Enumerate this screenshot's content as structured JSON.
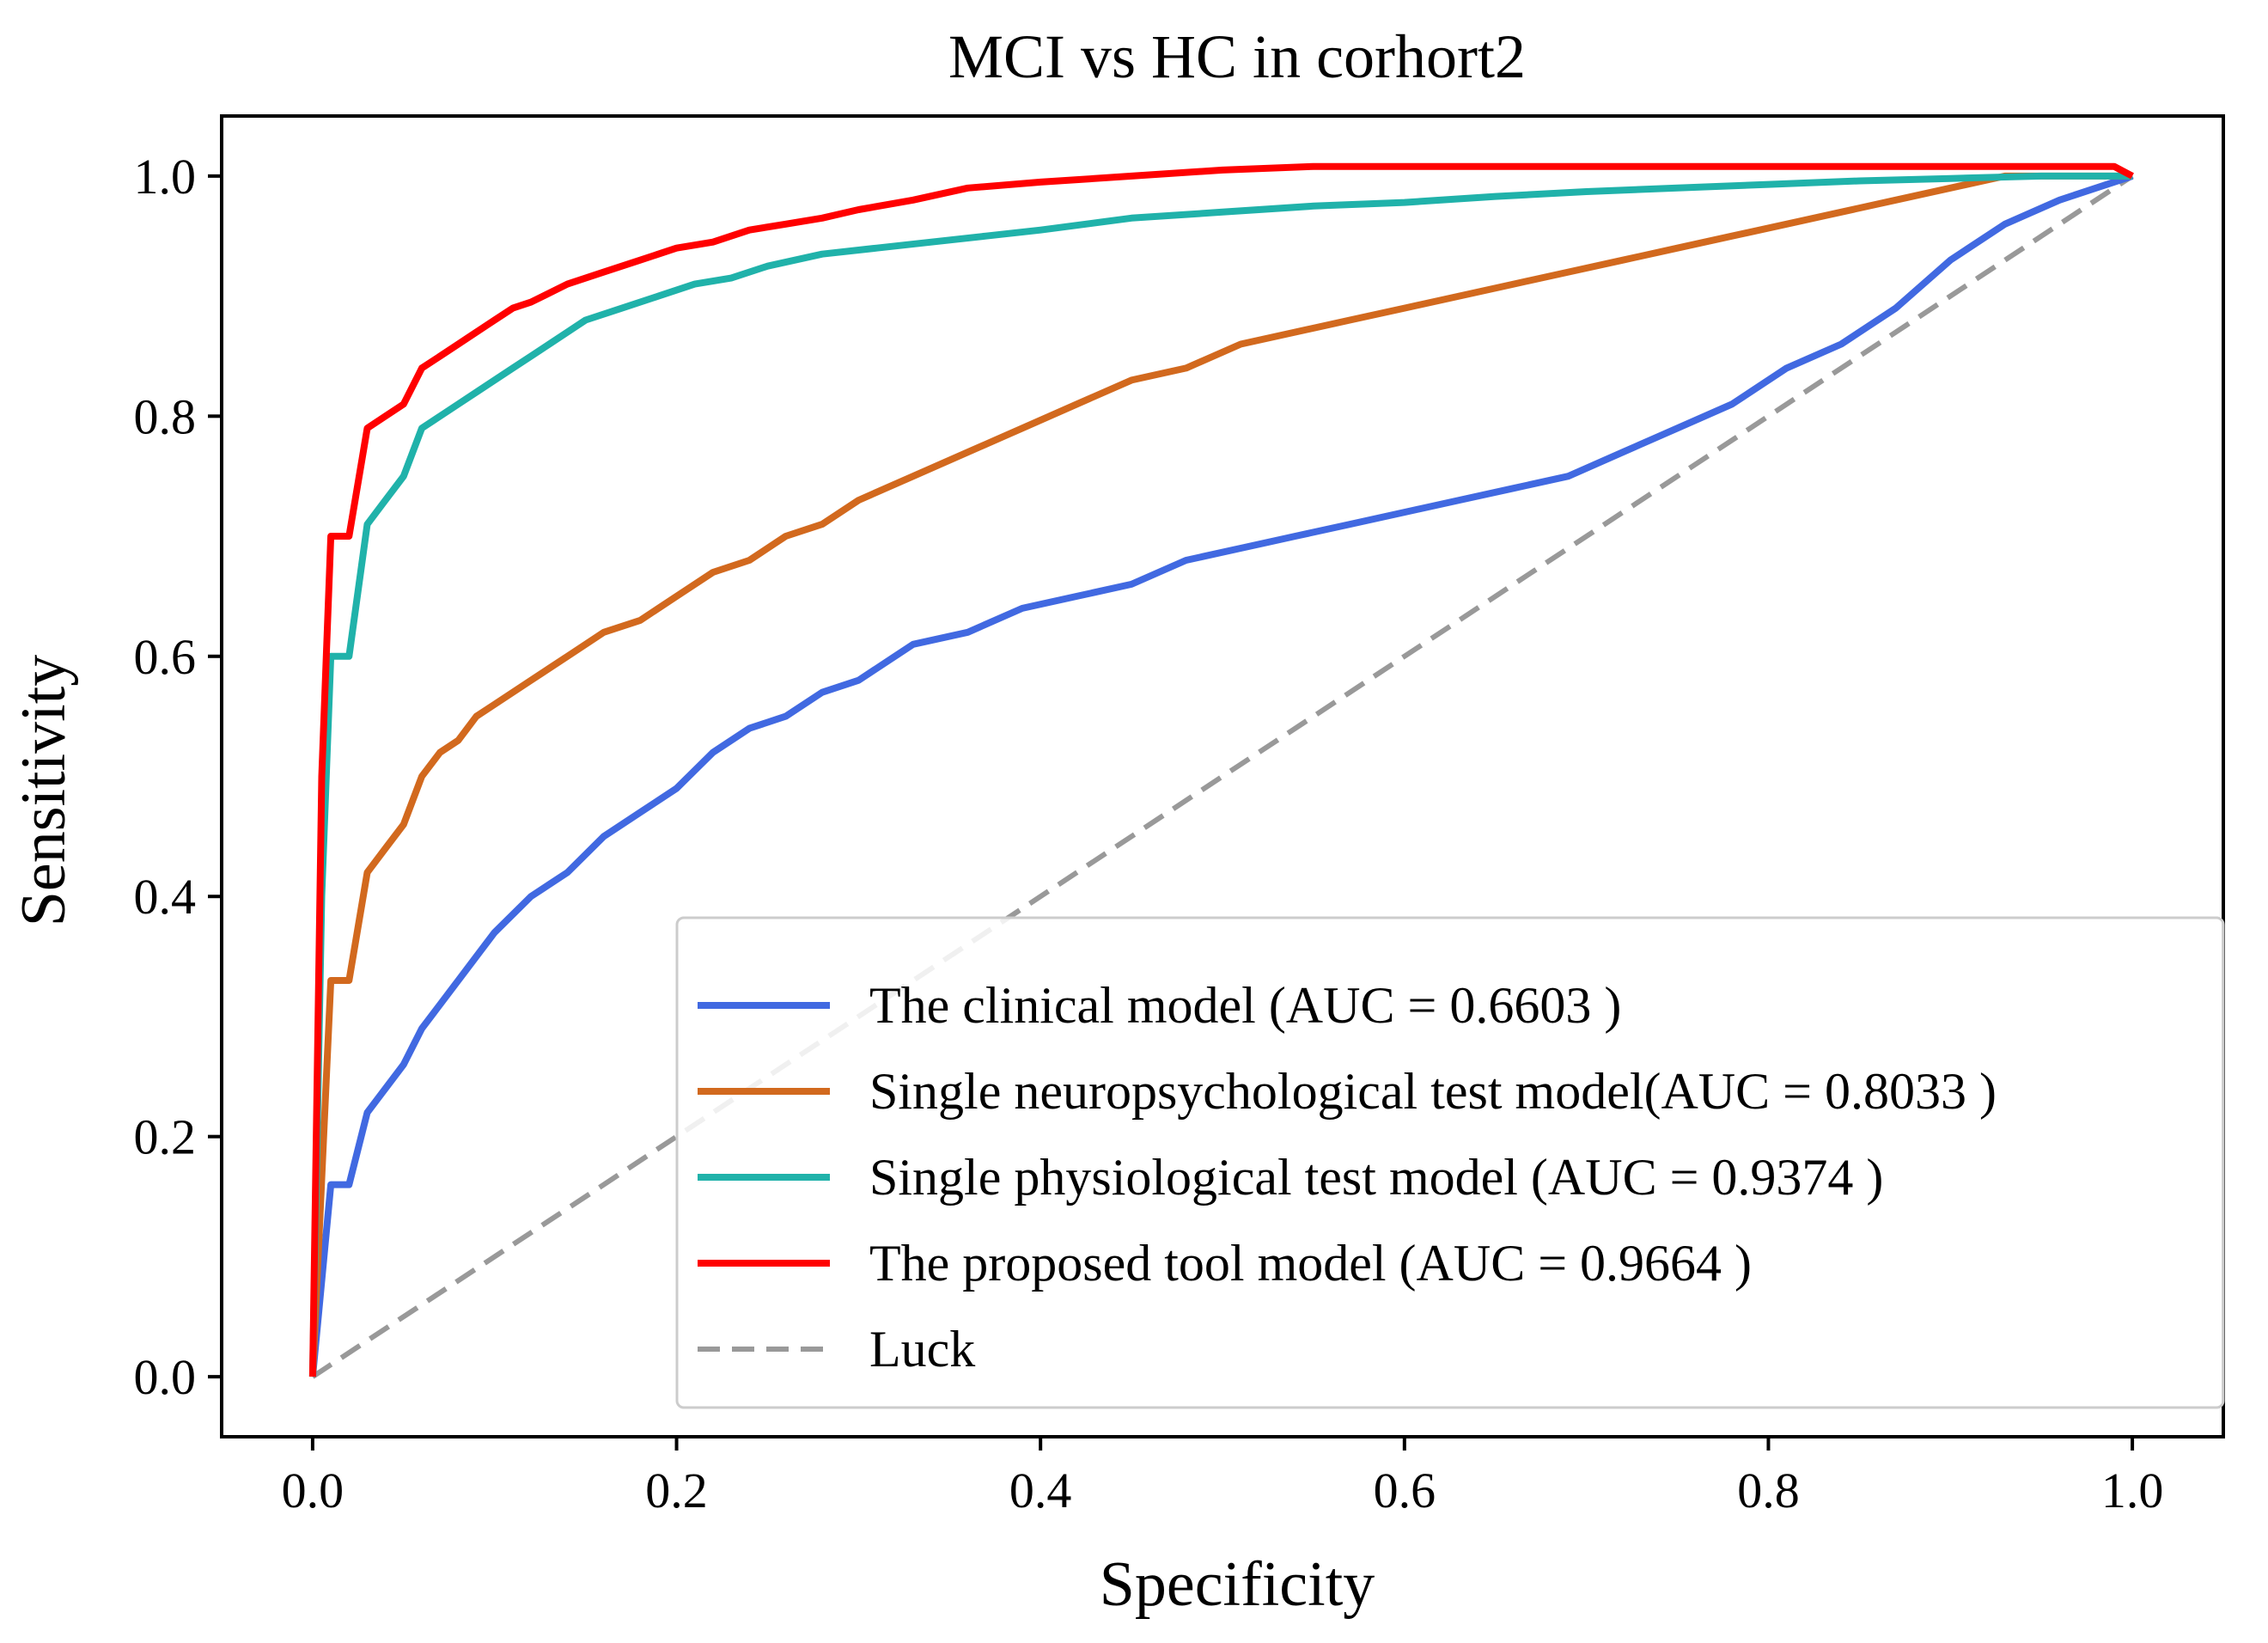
{
  "chart_data": {
    "type": "line",
    "title": "MCI vs HC in corhort2",
    "xlabel": "Specificity",
    "ylabel": "Sensitivity",
    "xlim": [
      -0.05,
      1.05
    ],
    "ylim": [
      -0.05,
      1.05
    ],
    "xticks": [
      0.0,
      0.2,
      0.4,
      0.6,
      0.8,
      1.0
    ],
    "xtick_labels": [
      "0.0",
      "0.2",
      "0.4",
      "0.6",
      "0.8",
      "1.0"
    ],
    "yticks": [
      0.0,
      0.2,
      0.4,
      0.6,
      0.8,
      1.0
    ],
    "ytick_labels": [
      "0.0",
      "0.2",
      "0.4",
      "0.6",
      "0.8",
      "1.0"
    ],
    "grid": false,
    "legend_position": "lower-right",
    "series": [
      {
        "name": "The clinical model (AUC = 0.6603 )",
        "color": "#4169e1",
        "style": "solid",
        "x": [
          0,
          0.01,
          0.02,
          0.03,
          0.04,
          0.05,
          0.06,
          0.07,
          0.08,
          0.09,
          0.1,
          0.12,
          0.14,
          0.16,
          0.18,
          0.2,
          0.22,
          0.24,
          0.26,
          0.28,
          0.3,
          0.33,
          0.36,
          0.39,
          0.42,
          0.45,
          0.48,
          0.51,
          0.54,
          0.57,
          0.6,
          0.63,
          0.66,
          0.69,
          0.72,
          0.75,
          0.78,
          0.81,
          0.84,
          0.87,
          0.9,
          0.93,
          0.96,
          0.98,
          1.0
        ],
        "y": [
          0,
          0.16,
          0.16,
          0.22,
          0.24,
          0.26,
          0.29,
          0.31,
          0.33,
          0.35,
          0.37,
          0.4,
          0.42,
          0.45,
          0.47,
          0.49,
          0.52,
          0.54,
          0.55,
          0.57,
          0.58,
          0.61,
          0.62,
          0.64,
          0.65,
          0.66,
          0.68,
          0.69,
          0.7,
          0.71,
          0.72,
          0.73,
          0.74,
          0.75,
          0.77,
          0.79,
          0.81,
          0.84,
          0.86,
          0.89,
          0.93,
          0.96,
          0.98,
          0.99,
          1.0
        ]
      },
      {
        "name": "Single neuropsychological test model(AUC = 0.8033 )",
        "color": "#d2691e",
        "style": "solid",
        "x": [
          0,
          0.01,
          0.02,
          0.03,
          0.04,
          0.05,
          0.06,
          0.07,
          0.08,
          0.09,
          0.1,
          0.12,
          0.14,
          0.16,
          0.18,
          0.2,
          0.22,
          0.24,
          0.26,
          0.28,
          0.3,
          0.33,
          0.36,
          0.39,
          0.42,
          0.45,
          0.48,
          0.51,
          0.54,
          0.57,
          0.6,
          0.63,
          0.66,
          0.69,
          0.72,
          0.75,
          0.78,
          0.81,
          0.84,
          0.87,
          0.9,
          0.93,
          0.96,
          1.0
        ],
        "y": [
          0,
          0.33,
          0.33,
          0.42,
          0.44,
          0.46,
          0.5,
          0.52,
          0.53,
          0.55,
          0.56,
          0.58,
          0.6,
          0.62,
          0.63,
          0.65,
          0.67,
          0.68,
          0.7,
          0.71,
          0.73,
          0.75,
          0.77,
          0.79,
          0.81,
          0.83,
          0.84,
          0.86,
          0.87,
          0.88,
          0.89,
          0.9,
          0.91,
          0.92,
          0.93,
          0.94,
          0.95,
          0.96,
          0.97,
          0.98,
          0.99,
          1.0,
          1.0,
          1.0
        ]
      },
      {
        "name": "Single physiological test model (AUC = 0.9374 )",
        "color": "#20b2aa",
        "style": "solid",
        "x": [
          0,
          0.005,
          0.01,
          0.02,
          0.03,
          0.04,
          0.05,
          0.06,
          0.07,
          0.08,
          0.09,
          0.1,
          0.11,
          0.12,
          0.13,
          0.15,
          0.17,
          0.19,
          0.21,
          0.23,
          0.25,
          0.28,
          0.31,
          0.34,
          0.37,
          0.4,
          0.45,
          0.5,
          0.55,
          0.6,
          0.65,
          0.7,
          0.75,
          0.8,
          0.85,
          0.9,
          0.95,
          1.0
        ],
        "y": [
          0,
          0.4,
          0.6,
          0.6,
          0.71,
          0.73,
          0.75,
          0.79,
          0.8,
          0.81,
          0.82,
          0.83,
          0.84,
          0.85,
          0.86,
          0.88,
          0.89,
          0.9,
          0.91,
          0.915,
          0.925,
          0.935,
          0.94,
          0.945,
          0.95,
          0.955,
          0.965,
          0.97,
          0.975,
          0.978,
          0.983,
          0.987,
          0.99,
          0.993,
          0.996,
          0.998,
          1.0,
          1.0
        ]
      },
      {
        "name": "The proposed tool model (AUC = 0.9664 )",
        "color": "#ff0000",
        "style": "solid",
        "x": [
          0,
          0.005,
          0.01,
          0.02,
          0.03,
          0.04,
          0.05,
          0.06,
          0.07,
          0.08,
          0.09,
          0.1,
          0.11,
          0.12,
          0.14,
          0.16,
          0.18,
          0.2,
          0.22,
          0.24,
          0.26,
          0.28,
          0.3,
          0.33,
          0.36,
          0.4,
          0.45,
          0.5,
          0.55,
          0.6,
          0.7,
          0.8,
          0.9,
          0.99,
          1.0
        ],
        "y": [
          0,
          0.5,
          0.7,
          0.7,
          0.79,
          0.8,
          0.81,
          0.84,
          0.85,
          0.86,
          0.87,
          0.88,
          0.89,
          0.895,
          0.91,
          0.92,
          0.93,
          0.94,
          0.945,
          0.955,
          0.96,
          0.965,
          0.972,
          0.98,
          0.99,
          0.995,
          1.0,
          1.005,
          1.008,
          1.008,
          1.008,
          1.008,
          1.008,
          1.008,
          1.0
        ]
      },
      {
        "name": "Luck",
        "color": "#999999",
        "style": "dashed",
        "x": [
          0,
          1
        ],
        "y": [
          0,
          1
        ]
      }
    ]
  }
}
